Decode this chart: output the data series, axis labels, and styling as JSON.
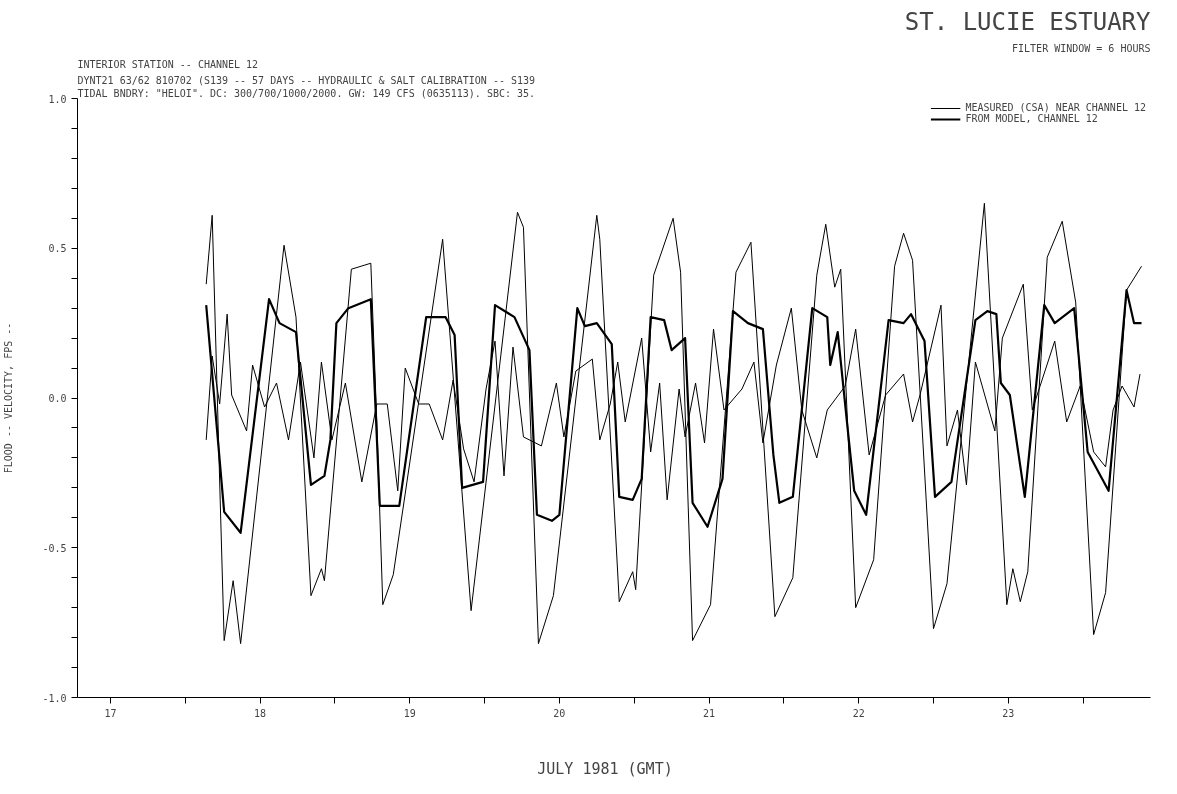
{
  "chart_data": {
    "type": "line",
    "title": "ST. LUCIE ESTUARY",
    "subtitle": "INTERIOR STATION -- CHANNEL 12",
    "annotations": [
      "FILTER WINDOW = 6 HOURS",
      "DYNT21 63/62  810702  (S139 -- 57 DAYS -- HYDRAULIC & SALT CALIBRATION -- S139",
      "TIDAL BNDRY: \"HELOI\". DC: 300/700/1000/2000. GW: 149 CFS (0635113). SBC: 35."
    ],
    "xlabel": "JULY   1981 (GMT)",
    "ylabel": "FLOOD -- VELOCITY, FPS --",
    "xlim": [
      17.28,
      24.45
    ],
    "ylim": [
      -1.0,
      1.0
    ],
    "xticks": [
      {
        "value": 17.5,
        "label": "17"
      },
      {
        "value": 18,
        "label": null
      },
      {
        "value": 18.5,
        "label": "18"
      },
      {
        "value": 19,
        "label": null
      },
      {
        "value": 19.5,
        "label": "19"
      },
      {
        "value": 20,
        "label": null
      },
      {
        "value": 20.5,
        "label": "20"
      },
      {
        "value": 21,
        "label": null
      },
      {
        "value": 21.5,
        "label": "21"
      },
      {
        "value": 22,
        "label": null
      },
      {
        "value": 22.5,
        "label": "22"
      },
      {
        "value": 23,
        "label": null
      },
      {
        "value": 23.5,
        "label": "23"
      },
      {
        "value": 24,
        "label": null
      }
    ],
    "yticks": [
      {
        "value": -1.0,
        "label": "-1.0"
      },
      {
        "value": -0.9,
        "label": null
      },
      {
        "value": -0.8,
        "label": null
      },
      {
        "value": -0.7,
        "label": null
      },
      {
        "value": -0.6,
        "label": null
      },
      {
        "value": -0.5,
        "label": "-0.5"
      },
      {
        "value": -0.4,
        "label": null
      },
      {
        "value": -0.3,
        "label": null
      },
      {
        "value": -0.2,
        "label": null
      },
      {
        "value": -0.1,
        "label": null
      },
      {
        "value": 0.0,
        "label": "0.0"
      },
      {
        "value": 0.1,
        "label": null
      },
      {
        "value": 0.2,
        "label": null
      },
      {
        "value": 0.3,
        "label": null
      },
      {
        "value": 0.4,
        "label": null
      },
      {
        "value": 0.5,
        "label": "0.5"
      },
      {
        "value": 0.6,
        "label": null
      },
      {
        "value": 0.7,
        "label": null
      },
      {
        "value": 0.8,
        "label": null
      },
      {
        "value": 0.9,
        "label": null
      },
      {
        "value": 1.0,
        "label": "1.0"
      }
    ],
    "grid": false,
    "legend": "top right",
    "marker": "none",
    "series": [
      {
        "name": "MEASURED (CSA) NEAR CHANNEL 12",
        "color": "#000000",
        "line_style": "solid",
        "x": [
          18.14,
          18.18,
          18.26,
          18.32,
          18.37,
          18.66,
          18.74,
          18.84,
          18.91,
          18.93,
          19.11,
          19.24,
          19.28,
          19.32,
          19.39,
          19.72,
          19.91,
          20.22,
          20.26,
          20.36,
          20.46,
          20.75,
          20.77,
          20.9,
          20.99,
          21.01,
          21.13,
          21.26,
          21.31,
          21.39,
          21.51,
          21.68,
          21.78,
          21.94,
          22.06,
          22.22,
          22.28,
          22.34,
          22.38,
          22.48,
          22.6,
          22.74,
          22.8,
          22.86,
          23.0,
          23.09,
          23.34,
          23.49,
          23.53,
          23.58,
          23.63,
          23.76,
          23.86,
          23.95,
          24.07,
          24.15,
          24.29,
          24.39
        ],
        "values": [
          0.38,
          0.61,
          -0.81,
          -0.61,
          -0.82,
          0.51,
          0.27,
          -0.66,
          -0.57,
          -0.61,
          0.43,
          0.45,
          -0.08,
          -0.69,
          -0.59,
          0.53,
          -0.71,
          0.62,
          0.57,
          -0.82,
          -0.66,
          0.61,
          0.53,
          -0.68,
          -0.58,
          -0.64,
          0.41,
          0.6,
          0.42,
          -0.81,
          -0.69,
          0.42,
          0.52,
          -0.73,
          -0.6,
          0.41,
          0.58,
          0.37,
          0.43,
          -0.7,
          -0.54,
          0.44,
          0.55,
          0.46,
          -0.77,
          -0.62,
          0.65,
          -0.69,
          -0.57,
          -0.68,
          -0.58,
          0.47,
          0.59,
          0.32,
          -0.79,
          -0.65,
          0.36,
          0.44
        ]
      },
      {
        "name": "FROM MODEL, CHANNEL 12",
        "color": "#000000",
        "line_style": "solid",
        "x": [
          18.14,
          18.26,
          18.37,
          18.56,
          18.63,
          18.74,
          18.84,
          18.93,
          18.97,
          19.01,
          19.09,
          19.24,
          19.3,
          19.43,
          19.61,
          19.74,
          19.8,
          19.85,
          19.99,
          20.07,
          20.2,
          20.3,
          20.35,
          20.45,
          20.5,
          20.62,
          20.67,
          20.75,
          20.85,
          20.9,
          20.99,
          21.05,
          21.11,
          21.2,
          21.25,
          21.34,
          21.39,
          21.49,
          21.59,
          21.66,
          21.76,
          21.86,
          21.93,
          21.97,
          22.06,
          22.19,
          22.29,
          22.31,
          22.36,
          22.43,
          22.47,
          22.55,
          22.7,
          22.8,
          22.85,
          22.94,
          23.01,
          23.12,
          23.28,
          23.36,
          23.42,
          23.45,
          23.51,
          23.61,
          23.74,
          23.81,
          23.94,
          24.03,
          24.17,
          24.29,
          24.34,
          24.39
        ],
        "values": [
          0.31,
          -0.38,
          -0.45,
          0.33,
          0.25,
          0.22,
          -0.29,
          -0.26,
          -0.14,
          0.25,
          0.3,
          0.33,
          -0.36,
          -0.36,
          0.27,
          0.27,
          0.21,
          -0.3,
          -0.28,
          0.31,
          0.27,
          0.16,
          -0.39,
          -0.41,
          -0.39,
          0.3,
          0.24,
          0.25,
          0.18,
          -0.33,
          -0.34,
          -0.27,
          0.27,
          0.26,
          0.16,
          0.2,
          -0.35,
          -0.43,
          -0.27,
          0.29,
          0.25,
          0.23,
          -0.19,
          -0.35,
          -0.33,
          0.3,
          0.27,
          0.11,
          0.22,
          -0.12,
          -0.31,
          -0.39,
          0.26,
          0.25,
          0.28,
          0.19,
          -0.33,
          -0.28,
          0.26,
          0.29,
          0.28,
          0.05,
          0.01,
          -0.33,
          0.31,
          0.25,
          0.3,
          -0.18,
          -0.31,
          0.36,
          0.25,
          0.25
        ]
      },
      {
        "color": "#000000",
        "line_style": "solid",
        "x": [
          18.14,
          18.18,
          18.23,
          18.28,
          18.31,
          18.41,
          18.45,
          18.53,
          18.61,
          18.69,
          18.77,
          18.86,
          18.91,
          18.98,
          19.07,
          19.18,
          19.28,
          19.35,
          19.42,
          19.47,
          19.56,
          19.63,
          19.72,
          19.79,
          19.86,
          19.93,
          20.01,
          20.07,
          20.13,
          20.19,
          20.26,
          20.38,
          20.48,
          20.53,
          20.61,
          20.72,
          20.77,
          20.84,
          20.89,
          20.94,
          21.05,
          21.11,
          21.17,
          21.22,
          21.3,
          21.34,
          21.41,
          21.47,
          21.53,
          21.6,
          21.72,
          21.8,
          21.86,
          21.95,
          22.05,
          22.12,
          22.22,
          22.29,
          22.41,
          22.48,
          22.57,
          22.68,
          22.8,
          22.86,
          22.91,
          23.05,
          23.09,
          23.16,
          23.22,
          23.28,
          23.41,
          23.46,
          23.6,
          23.66,
          23.81,
          23.89,
          23.98,
          24.07,
          24.15,
          24.2,
          24.26,
          24.34,
          24.38
        ],
        "values": [
          -0.14,
          0.14,
          -0.02,
          0.28,
          0.01,
          -0.11,
          0.11,
          -0.03,
          0.05,
          -0.14,
          0.12,
          -0.2,
          0.12,
          -0.14,
          0.05,
          -0.28,
          -0.02,
          -0.02,
          -0.31,
          0.1,
          -0.02,
          -0.02,
          -0.14,
          0.06,
          -0.17,
          -0.28,
          0.03,
          0.19,
          -0.26,
          0.17,
          -0.13,
          -0.16,
          0.05,
          -0.13,
          0.09,
          0.13,
          -0.14,
          -0.02,
          0.12,
          -0.08,
          0.2,
          -0.18,
          0.05,
          -0.34,
          0.03,
          -0.13,
          0.05,
          -0.15,
          0.23,
          -0.04,
          0.03,
          0.12,
          -0.15,
          0.11,
          0.3,
          -0.04,
          -0.2,
          -0.04,
          0.04,
          0.23,
          -0.19,
          0.01,
          0.08,
          -0.08,
          0.01,
          0.31,
          -0.16,
          -0.04,
          -0.29,
          0.12,
          -0.11,
          0.2,
          0.38,
          -0.04,
          0.19,
          -0.08,
          0.04,
          -0.18,
          -0.23,
          -0.04,
          0.04,
          -0.03,
          0.08
        ]
      }
    ]
  }
}
